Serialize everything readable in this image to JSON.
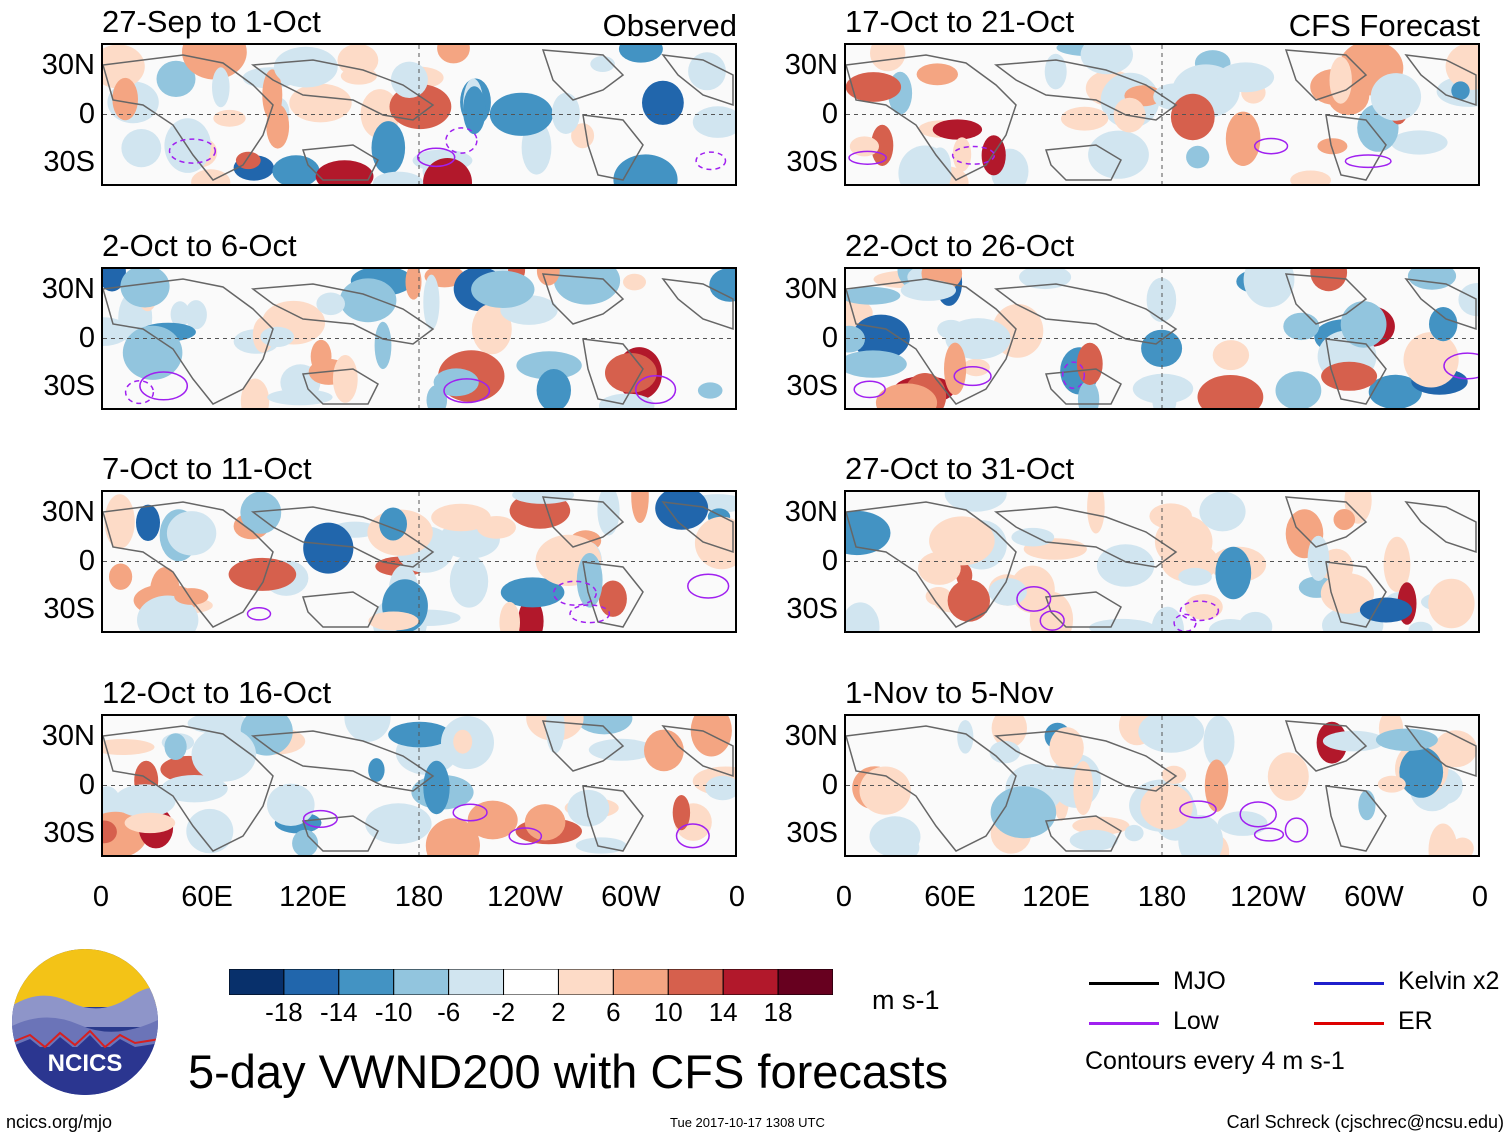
{
  "chart_data": {
    "type": "heatmap",
    "title": "5-day VWND200 with CFS forecasts",
    "variable": "VWND200",
    "units": "m s-1",
    "x_ticks": [
      "0",
      "60E",
      "120E",
      "180",
      "120W",
      "60W",
      "0"
    ],
    "y_ticks": [
      "30N",
      "0",
      "30S"
    ],
    "columns": [
      {
        "label": "Observed",
        "panels": [
          {
            "title": "27-Sep to 1-Oct"
          },
          {
            "title": "2-Oct to 6-Oct"
          },
          {
            "title": "7-Oct to 11-Oct"
          },
          {
            "title": "12-Oct to 16-Oct"
          }
        ]
      },
      {
        "label": "CFS Forecast",
        "panels": [
          {
            "title": "17-Oct to 21-Oct"
          },
          {
            "title": "22-Oct to 26-Oct"
          },
          {
            "title": "27-Oct to 31-Oct"
          },
          {
            "title": "1-Nov to 5-Nov"
          }
        ]
      }
    ],
    "colorbar": {
      "levels": [
        "-18",
        "-14",
        "-10",
        "-6",
        "-2",
        "2",
        "6",
        "10",
        "14",
        "18"
      ],
      "colors": [
        "#08306b",
        "#2166ac",
        "#4393c3",
        "#92c5de",
        "#d1e5f0",
        "#ffffff",
        "#fddbc7",
        "#f4a582",
        "#d6604d",
        "#b2182b",
        "#67001f"
      ]
    },
    "legend": [
      {
        "label": "MJO",
        "color": "#000000"
      },
      {
        "label": "Low",
        "color": "#a020f0"
      },
      {
        "label": "Kelvin x2",
        "color": "#1f1fcc"
      },
      {
        "label": "ER",
        "color": "#dd0000"
      }
    ],
    "contour_note": "Contours every 4 m s-1"
  },
  "footer": {
    "logo_text": "NCICS",
    "url": "ncics.org/mjo",
    "timestamp": "Tue 2017-10-17 1308 UTC",
    "credit": "Carl Schreck (cjschrec@ncsu.edu)"
  }
}
